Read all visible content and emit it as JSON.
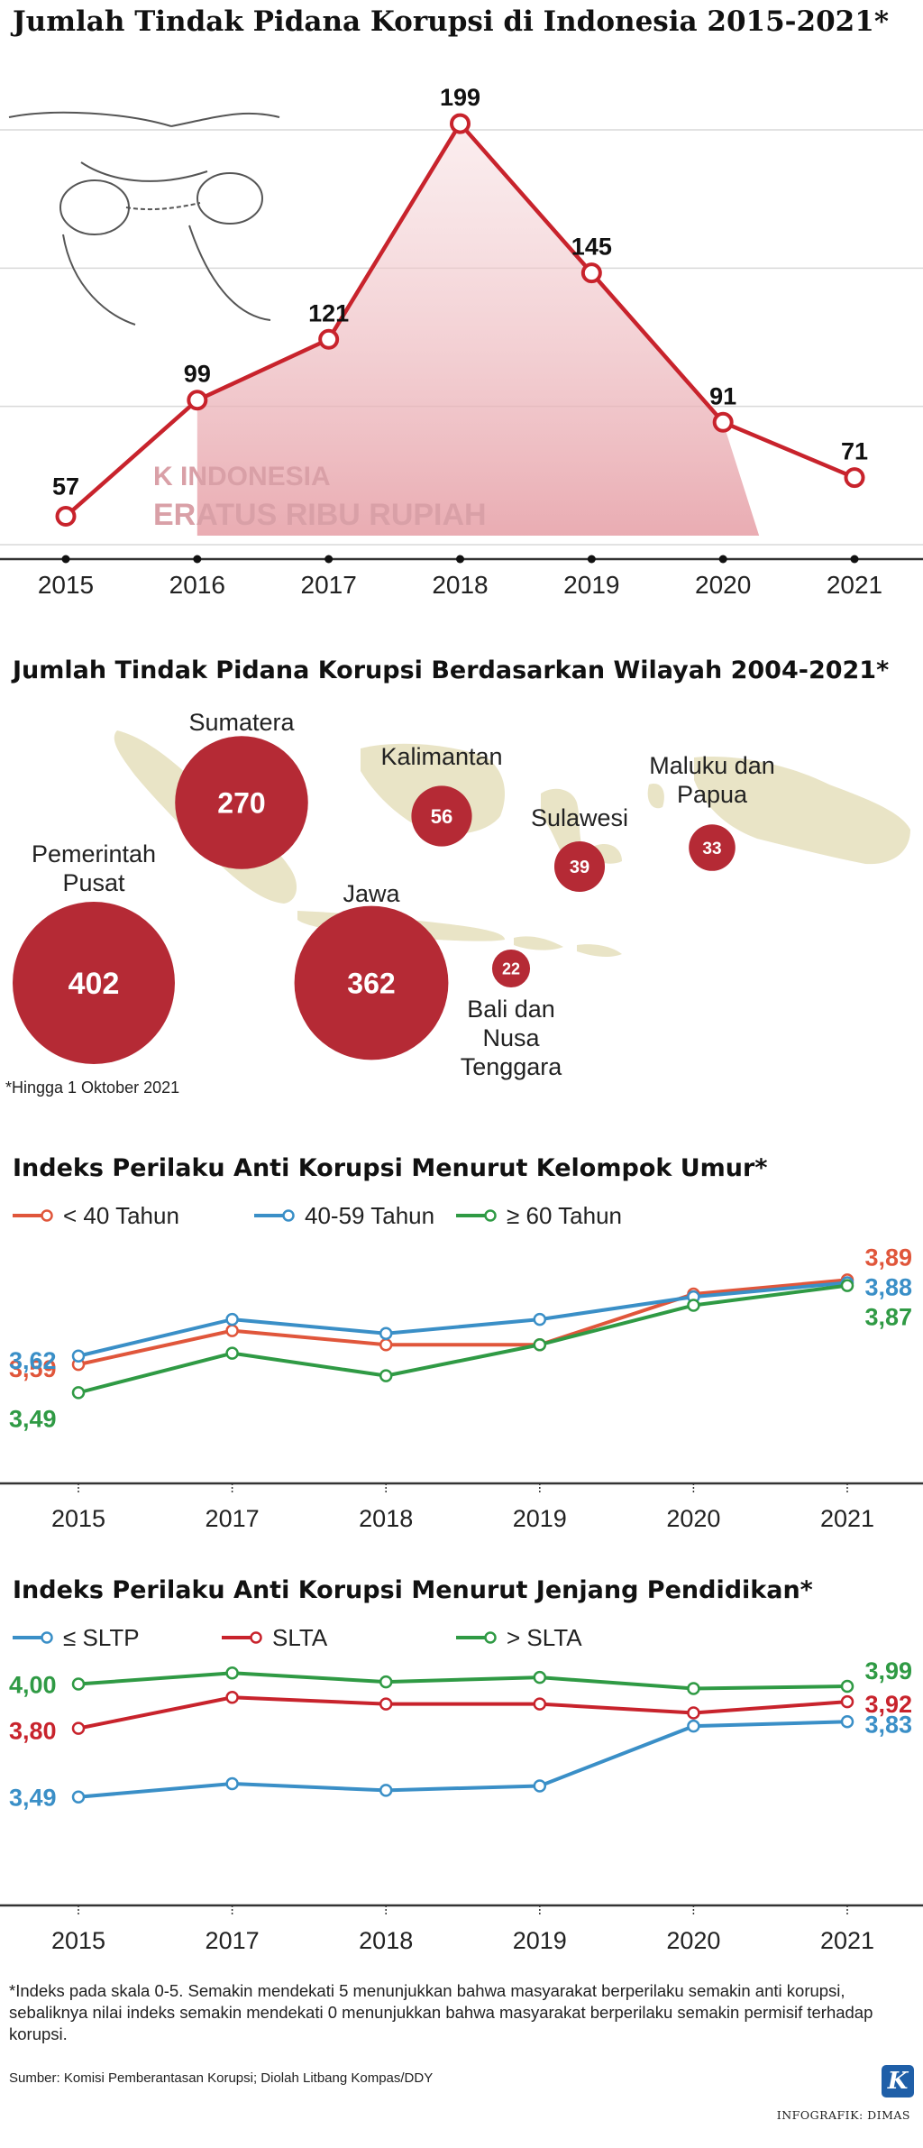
{
  "colors": {
    "red": "#c8232c",
    "dark_red": "#b52a35",
    "orange_red": "#e0563b",
    "blue": "#3a8fc7",
    "green": "#2f9a44",
    "map": "#e9e4c6",
    "axis": "#333333",
    "grid": "#d9d9d9"
  },
  "chart_data": [
    {
      "type": "line",
      "title": "Jumlah Tindak Pidana Korupsi di Indonesia 2015-2021*",
      "categories": [
        "2015",
        "2016",
        "2017",
        "2018",
        "2019",
        "2020",
        "2021"
      ],
      "values": [
        57,
        99,
        121,
        199,
        145,
        91,
        71
      ],
      "data_labels": [
        "57",
        "99",
        "121",
        "199",
        "145",
        "91",
        "71"
      ],
      "ylim": [
        50,
        200
      ],
      "grid": true
    },
    {
      "type": "bubble",
      "title": "Jumlah Tindak Pidana Korupsi Berdasarkan Wilayah 2004-2021*",
      "note": "*Hingga 1 Oktober 2021",
      "items": [
        {
          "region": "Sumatera",
          "value": 270,
          "value_label": "270"
        },
        {
          "region": "Kalimantan",
          "value": 56,
          "value_label": "56"
        },
        {
          "region": "Sulawesi",
          "value": 39,
          "value_label": "39"
        },
        {
          "region": "Maluku dan Papua",
          "value": 33,
          "value_label": "33"
        },
        {
          "region": "Pemerintah Pusat",
          "value": 402,
          "value_label": "402"
        },
        {
          "region": "Jawa",
          "value": 362,
          "value_label": "362"
        },
        {
          "region": "Bali dan Nusa Tenggara",
          "value": 22,
          "value_label": "22"
        }
      ]
    },
    {
      "type": "line",
      "title": "Indeks Perilaku Anti Korupsi Menurut Kelompok Umur*",
      "categories": [
        "2015",
        "2017",
        "2018",
        "2019",
        "2020",
        "2021"
      ],
      "ylim": [
        3.2,
        4.0
      ],
      "series": [
        {
          "name": "< 40 Tahun",
          "color": "#e0563b",
          "values": [
            3.59,
            3.71,
            3.66,
            3.66,
            3.84,
            3.89
          ],
          "start_label": "3,59",
          "end_label": "3,89"
        },
        {
          "name": "40-59 Tahun",
          "color": "#3a8fc7",
          "values": [
            3.62,
            3.75,
            3.7,
            3.75,
            3.83,
            3.88
          ],
          "start_label": "3,62",
          "end_label": "3,88"
        },
        {
          "name": "≥ 60 Tahun",
          "color": "#2f9a44",
          "values": [
            3.49,
            3.63,
            3.55,
            3.66,
            3.8,
            3.87
          ],
          "start_label": "3,49",
          "end_label": "3,87"
        }
      ]
    },
    {
      "type": "line",
      "title": "Indeks Perilaku Anti Korupsi Menurut Jenjang Pendidikan*",
      "categories": [
        "2015",
        "2017",
        "2018",
        "2019",
        "2020",
        "2021"
      ],
      "ylim": [
        3.0,
        4.1
      ],
      "series": [
        {
          "name": "≤ SLTP",
          "color": "#3a8fc7",
          "values": [
            3.49,
            3.55,
            3.52,
            3.54,
            3.81,
            3.83
          ],
          "start_label": "3,49",
          "end_label": "3,83"
        },
        {
          "name": "SLTA",
          "color": "#c8232c",
          "values": [
            3.8,
            3.94,
            3.91,
            3.91,
            3.87,
            3.92
          ],
          "start_label": "3,80",
          "end_label": "3,92"
        },
        {
          "name": "> SLTA",
          "color": "#2f9a44",
          "values": [
            4.0,
            4.05,
            4.01,
            4.03,
            3.98,
            3.99
          ],
          "start_label": "4,00",
          "end_label": "3,99"
        }
      ]
    }
  ],
  "footnote": "*Indeks pada skala 0-5. Semakin mendekati 5 menunjukkan bahwa masyarakat berperilaku semakin anti korupsi, sebaliknya nilai indeks semakin mendekati 0 menunjukkan bahwa masyarakat berperilaku semakin permisif terhadap korupsi.",
  "source": "Sumber: Komisi Pemberantasan Korupsi; Diolah Litbang Kompas/DDY",
  "credit": "INFOGRAFIK: DIMAS",
  "logo_letter": "K",
  "banknote_text": [
    "K INDONESIA",
    "ERATUS RIBU RUPIAH"
  ]
}
